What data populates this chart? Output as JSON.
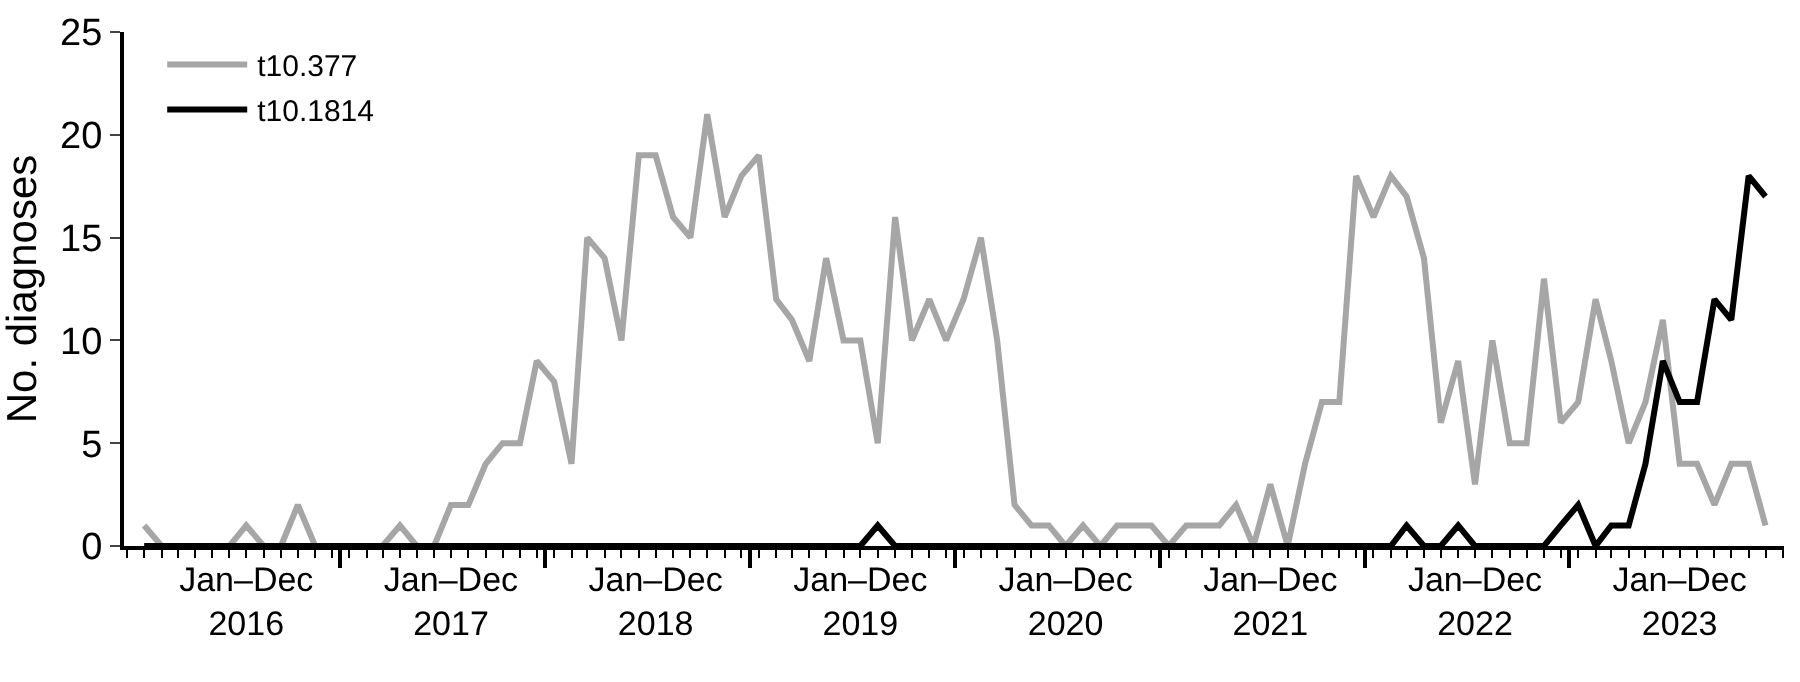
{
  "chart_data": {
    "type": "line",
    "ylabel": "No. diagnoses",
    "x": [
      "2016-01",
      "2016-02",
      "2016-03",
      "2016-04",
      "2016-05",
      "2016-06",
      "2016-07",
      "2016-08",
      "2016-09",
      "2016-10",
      "2016-11",
      "2016-12",
      "2017-01",
      "2017-02",
      "2017-03",
      "2017-04",
      "2017-05",
      "2017-06",
      "2017-07",
      "2017-08",
      "2017-09",
      "2017-10",
      "2017-11",
      "2017-12",
      "2018-01",
      "2018-02",
      "2018-03",
      "2018-04",
      "2018-05",
      "2018-06",
      "2018-07",
      "2018-08",
      "2018-09",
      "2018-10",
      "2018-11",
      "2018-12",
      "2019-01",
      "2019-02",
      "2019-03",
      "2019-04",
      "2019-05",
      "2019-06",
      "2019-07",
      "2019-08",
      "2019-09",
      "2019-10",
      "2019-11",
      "2019-12",
      "2020-01",
      "2020-02",
      "2020-03",
      "2020-04",
      "2020-05",
      "2020-06",
      "2020-07",
      "2020-08",
      "2020-09",
      "2020-10",
      "2020-11",
      "2020-12",
      "2021-01",
      "2021-02",
      "2021-03",
      "2021-04",
      "2021-05",
      "2021-06",
      "2021-07",
      "2021-08",
      "2021-09",
      "2021-10",
      "2021-11",
      "2021-12",
      "2022-01",
      "2022-02",
      "2022-03",
      "2022-04",
      "2022-05",
      "2022-06",
      "2022-07",
      "2022-08",
      "2022-09",
      "2022-10",
      "2022-11",
      "2022-12",
      "2023-01",
      "2023-02",
      "2023-03",
      "2023-04",
      "2023-05",
      "2023-06",
      "2023-07",
      "2023-08",
      "2023-09",
      "2023-10",
      "2023-11",
      "2023-12"
    ],
    "series": [
      {
        "name": "t10.377",
        "color": "#a6a6a6",
        "values": [
          1,
          0,
          0,
          0,
          0,
          0,
          1,
          0,
          0,
          2,
          0,
          0,
          0,
          0,
          0,
          1,
          0,
          0,
          2,
          2,
          4,
          5,
          5,
          9,
          8,
          4,
          15,
          14,
          10,
          19,
          19,
          16,
          15,
          21,
          16,
          18,
          19,
          12,
          11,
          9,
          14,
          10,
          10,
          5,
          16,
          10,
          12,
          10,
          12,
          15,
          10,
          2,
          1,
          1,
          0,
          1,
          0,
          1,
          1,
          1,
          0,
          1,
          1,
          1,
          2,
          0,
          3,
          0,
          4,
          7,
          7,
          18,
          16,
          18,
          17,
          14,
          6,
          9,
          3,
          10,
          5,
          5,
          13,
          6,
          7,
          12,
          9,
          5,
          7,
          11,
          4,
          4,
          2,
          4,
          4,
          1
        ]
      },
      {
        "name": "t10.1814",
        "color": "#000000",
        "values": [
          0,
          0,
          0,
          0,
          0,
          0,
          0,
          0,
          0,
          0,
          0,
          0,
          0,
          0,
          0,
          0,
          0,
          0,
          0,
          0,
          0,
          0,
          0,
          0,
          0,
          0,
          0,
          0,
          0,
          0,
          0,
          0,
          0,
          0,
          0,
          0,
          0,
          0,
          0,
          0,
          0,
          0,
          0,
          1,
          0,
          0,
          0,
          0,
          0,
          0,
          0,
          0,
          0,
          0,
          0,
          0,
          0,
          0,
          0,
          0,
          0,
          0,
          0,
          0,
          0,
          0,
          0,
          0,
          0,
          0,
          0,
          0,
          0,
          0,
          1,
          0,
          0,
          1,
          0,
          0,
          0,
          0,
          0,
          1,
          2,
          0,
          1,
          1,
          4,
          9,
          7,
          7,
          12,
          11,
          18,
          17
        ]
      }
    ],
    "xlim": [
      "2015-11-26",
      "2024-01-03"
    ],
    "xticks": [
      {
        "value": "2016-07-01",
        "label": "Jan–Dec\n2016"
      },
      {
        "value": "2016-12-16",
        "label": null
      },
      {
        "value": "2017-07-01",
        "label": "Jan–Dec\n2017"
      },
      {
        "value": "2017-12-16",
        "label": null
      },
      {
        "value": "2018-07-01",
        "label": "Jan–Dec\n2018"
      },
      {
        "value": "2018-12-16",
        "label": null
      },
      {
        "value": "2019-07-01",
        "label": "Jan–Dec\n2019"
      },
      {
        "value": "2019-12-16",
        "label": null
      },
      {
        "value": "2020-07-01",
        "label": "Jan–Dec\n2020"
      },
      {
        "value": "2020-12-16",
        "label": null
      },
      {
        "value": "2021-07-01",
        "label": "Jan–Dec\n2021"
      },
      {
        "value": "2021-12-16",
        "label": null
      },
      {
        "value": "2022-07-01",
        "label": "Jan–Dec\n2022"
      },
      {
        "value": "2022-12-16",
        "label": null
      },
      {
        "value": "2023-07-01",
        "label": "Jan–Dec\n2023"
      }
    ],
    "ylim": [
      0,
      25
    ],
    "yticks": [
      0,
      5,
      10,
      15,
      20,
      25
    ],
    "legend": "top left",
    "marker": "none",
    "line_style": "solid"
  }
}
